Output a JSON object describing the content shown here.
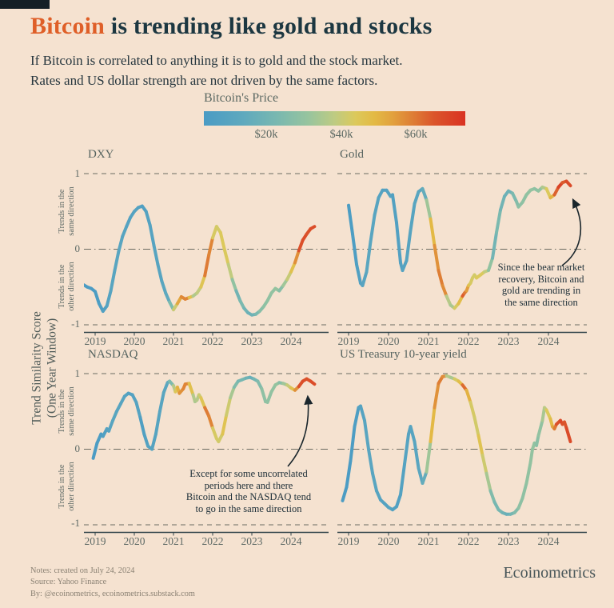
{
  "page": {
    "background": "#F5E2D0"
  },
  "header": {
    "title_highlight": "Bitcoin",
    "title_rest": " is trending like gold and stocks",
    "subtitle_line1": "If Bitcoin is correlated to anything it is to gold and the stock market.",
    "subtitle_line2": "Rates and US dollar strength are not driven by the same factors.",
    "accent_color": "#DF5F28",
    "title_color": "#1C3741"
  },
  "colorbar": {
    "label": "Bitcoin's Price",
    "ticks": [
      "$20k",
      "$40k",
      "$60k"
    ],
    "tick_positions_pct": [
      24,
      52.6,
      81
    ],
    "price_at_left_usd_k": 3,
    "price_at_right_usd_k": 72,
    "stops": [
      [
        0,
        "#4A9BC4"
      ],
      [
        0.15,
        "#5FA9BE"
      ],
      [
        0.28,
        "#79B8B0"
      ],
      [
        0.4,
        "#97C49E"
      ],
      [
        0.5,
        "#BECB82"
      ],
      [
        0.58,
        "#DCC95B"
      ],
      [
        0.65,
        "#E3BA45"
      ],
      [
        0.72,
        "#E2A23E"
      ],
      [
        0.8,
        "#DE7D35"
      ],
      [
        0.88,
        "#DB552B"
      ],
      [
        1,
        "#D93222"
      ]
    ]
  },
  "axis": {
    "years": [
      "2019",
      "2020",
      "2021",
      "2022",
      "2023",
      "2024"
    ],
    "y_tick_top": "1",
    "y_tick_mid": "0",
    "y_tick_bottom": "-1",
    "same_l1": "Trends in the",
    "same_l2": "same direction",
    "other_l1": "Trends in the",
    "other_l2": "other direction",
    "shared_ylabel_line1": "Trend Similarity Score",
    "shared_ylabel_line2": "(One Year Window)"
  },
  "annotations": {
    "gold": {
      "lines": [
        "Since the bear market",
        "recovery, Bitcoin and",
        "gold are trending in",
        "the same direction"
      ]
    },
    "nasdaq": {
      "lines": [
        "Except for some uncorrelated",
        "periods here and there",
        "Bitcoin and the NASDAQ tend",
        "to go in the same direction"
      ]
    }
  },
  "footer": {
    "note1": "Notes: created on July 24, 2024",
    "note2": "Source: Yahoo Finance",
    "note3": "By: @ecoinometrics, ecoinometrics.substack.com",
    "brand": "Ecoinometrics"
  },
  "chart_data": {
    "type": "line",
    "ylabel": "Trend Similarity Score (One Year Window)",
    "color_encoding": "line color = Bitcoin price (USD thousands) via colorbar",
    "ylim": [
      -1,
      1
    ],
    "xlim": [
      2018.7,
      2024.8
    ],
    "y_gridlines": [
      1,
      0,
      -1
    ],
    "grid": "dashed",
    "panels": [
      {
        "title": "DXY",
        "x": [
          2018.7,
          2018.8,
          2018.9,
          2019.0,
          2019.1,
          2019.2,
          2019.3,
          2019.4,
          2019.5,
          2019.6,
          2019.7,
          2019.8,
          2019.9,
          2020.0,
          2020.1,
          2020.2,
          2020.3,
          2020.4,
          2020.5,
          2020.6,
          2020.7,
          2020.8,
          2020.9,
          2021.0,
          2021.1,
          2021.2,
          2021.3,
          2021.4,
          2021.5,
          2021.6,
          2021.7,
          2021.8,
          2021.9,
          2022.0,
          2022.1,
          2022.2,
          2022.3,
          2022.4,
          2022.5,
          2022.6,
          2022.7,
          2022.8,
          2022.9,
          2023.0,
          2023.1,
          2023.2,
          2023.3,
          2023.4,
          2023.5,
          2023.6,
          2023.7,
          2023.8,
          2023.9,
          2024.0,
          2024.1,
          2024.2,
          2024.3,
          2024.4,
          2024.5,
          2024.6
        ],
        "y": [
          -0.47,
          -0.5,
          -0.52,
          -0.56,
          -0.72,
          -0.82,
          -0.75,
          -0.55,
          -0.28,
          -0.03,
          0.17,
          0.3,
          0.42,
          0.5,
          0.55,
          0.57,
          0.5,
          0.32,
          0.05,
          -0.2,
          -0.42,
          -0.58,
          -0.7,
          -0.8,
          -0.72,
          -0.63,
          -0.66,
          -0.64,
          -0.62,
          -0.58,
          -0.5,
          -0.35,
          -0.08,
          0.15,
          0.3,
          0.22,
          0.0,
          -0.2,
          -0.4,
          -0.55,
          -0.68,
          -0.78,
          -0.84,
          -0.87,
          -0.86,
          -0.82,
          -0.76,
          -0.68,
          -0.58,
          -0.52,
          -0.55,
          -0.48,
          -0.4,
          -0.3,
          -0.18,
          -0.02,
          0.12,
          0.2,
          0.27,
          0.3
        ]
      },
      {
        "title": "Gold",
        "annotation": "Since the bear market recovery, Bitcoin and gold are trending in the same direction",
        "x": [
          2019.0,
          2019.1,
          2019.2,
          2019.3,
          2019.35,
          2019.45,
          2019.55,
          2019.65,
          2019.75,
          2019.85,
          2019.95,
          2020.05,
          2020.1,
          2020.2,
          2020.3,
          2020.35,
          2020.45,
          2020.55,
          2020.65,
          2020.75,
          2020.85,
          2020.95,
          2021.05,
          2021.15,
          2021.25,
          2021.35,
          2021.45,
          2021.55,
          2021.65,
          2021.75,
          2021.85,
          2021.9,
          2021.95,
          2022.0,
          2022.05,
          2022.1,
          2022.15,
          2022.2,
          2022.3,
          2022.4,
          2022.5,
          2022.6,
          2022.7,
          2022.8,
          2022.9,
          2023.0,
          2023.1,
          2023.2,
          2023.25,
          2023.35,
          2023.45,
          2023.55,
          2023.65,
          2023.75,
          2023.85,
          2023.95,
          2024.05,
          2024.15,
          2024.25,
          2024.35,
          2024.45,
          2024.55
        ],
        "y": [
          0.58,
          0.2,
          -0.2,
          -0.45,
          -0.48,
          -0.3,
          0.1,
          0.45,
          0.68,
          0.78,
          0.78,
          0.7,
          0.72,
          0.35,
          -0.18,
          -0.28,
          -0.15,
          0.25,
          0.6,
          0.76,
          0.8,
          0.65,
          0.4,
          0.05,
          -0.28,
          -0.48,
          -0.62,
          -0.74,
          -0.78,
          -0.72,
          -0.62,
          -0.58,
          -0.55,
          -0.48,
          -0.45,
          -0.38,
          -0.34,
          -0.38,
          -0.34,
          -0.3,
          -0.28,
          -0.12,
          0.22,
          0.52,
          0.7,
          0.77,
          0.74,
          0.63,
          0.56,
          0.62,
          0.72,
          0.78,
          0.8,
          0.77,
          0.82,
          0.8,
          0.68,
          0.72,
          0.82,
          0.88,
          0.9,
          0.84
        ]
      },
      {
        "title": "NASDAQ",
        "annotation": "Except for some uncorrelated periods here and there Bitcoin and the NASDAQ tend to go in the same direction",
        "x": [
          2018.95,
          2019.05,
          2019.15,
          2019.2,
          2019.3,
          2019.35,
          2019.45,
          2019.55,
          2019.65,
          2019.75,
          2019.85,
          2019.95,
          2020.05,
          2020.15,
          2020.25,
          2020.35,
          2020.45,
          2020.55,
          2020.65,
          2020.75,
          2020.85,
          2020.9,
          2021.0,
          2021.05,
          2021.1,
          2021.15,
          2021.25,
          2021.3,
          2021.4,
          2021.5,
          2021.55,
          2021.6,
          2021.65,
          2021.7,
          2021.8,
          2021.9,
          2022.0,
          2022.1,
          2022.15,
          2022.25,
          2022.35,
          2022.45,
          2022.55,
          2022.65,
          2022.75,
          2022.85,
          2022.95,
          2023.05,
          2023.15,
          2023.25,
          2023.35,
          2023.4,
          2023.5,
          2023.6,
          2023.7,
          2023.8,
          2023.9,
          2024.0,
          2024.1,
          2024.2,
          2024.3,
          2024.4,
          2024.5,
          2024.6
        ],
        "y": [
          -0.12,
          0.08,
          0.2,
          0.17,
          0.27,
          0.24,
          0.38,
          0.5,
          0.6,
          0.7,
          0.74,
          0.72,
          0.62,
          0.42,
          0.2,
          0.04,
          0.0,
          0.2,
          0.5,
          0.75,
          0.88,
          0.9,
          0.84,
          0.76,
          0.82,
          0.74,
          0.8,
          0.86,
          0.87,
          0.72,
          0.63,
          0.65,
          0.72,
          0.68,
          0.55,
          0.44,
          0.28,
          0.14,
          0.1,
          0.2,
          0.45,
          0.68,
          0.82,
          0.9,
          0.92,
          0.94,
          0.95,
          0.93,
          0.9,
          0.8,
          0.63,
          0.62,
          0.76,
          0.85,
          0.88,
          0.87,
          0.85,
          0.81,
          0.78,
          0.83,
          0.9,
          0.93,
          0.9,
          0.86
        ]
      },
      {
        "title": "US Treasury 10-year yield",
        "x": [
          2018.85,
          2018.95,
          2019.05,
          2019.15,
          2019.25,
          2019.3,
          2019.4,
          2019.5,
          2019.6,
          2019.7,
          2019.8,
          2019.9,
          2020.0,
          2020.1,
          2020.2,
          2020.3,
          2020.4,
          2020.5,
          2020.55,
          2020.65,
          2020.75,
          2020.85,
          2020.95,
          2021.05,
          2021.15,
          2021.25,
          2021.35,
          2021.45,
          2021.55,
          2021.65,
          2021.75,
          2021.85,
          2021.95,
          2022.05,
          2022.15,
          2022.25,
          2022.35,
          2022.45,
          2022.55,
          2022.65,
          2022.75,
          2022.85,
          2022.95,
          2023.05,
          2023.15,
          2023.25,
          2023.35,
          2023.45,
          2023.55,
          2023.6,
          2023.65,
          2023.7,
          2023.75,
          2023.85,
          2023.9,
          2023.95,
          2024.05,
          2024.1,
          2024.15,
          2024.2,
          2024.3,
          2024.35,
          2024.4,
          2024.45,
          2024.55
        ],
        "y": [
          -0.68,
          -0.5,
          -0.15,
          0.3,
          0.55,
          0.57,
          0.38,
          0.0,
          -0.32,
          -0.55,
          -0.67,
          -0.72,
          -0.77,
          -0.8,
          -0.76,
          -0.6,
          -0.2,
          0.2,
          0.3,
          0.1,
          -0.25,
          -0.45,
          -0.3,
          0.1,
          0.55,
          0.87,
          0.96,
          0.97,
          0.95,
          0.93,
          0.9,
          0.85,
          0.78,
          0.62,
          0.42,
          0.18,
          -0.08,
          -0.32,
          -0.55,
          -0.7,
          -0.8,
          -0.84,
          -0.86,
          -0.86,
          -0.84,
          -0.78,
          -0.65,
          -0.45,
          -0.18,
          0.0,
          0.08,
          0.05,
          0.18,
          0.38,
          0.55,
          0.52,
          0.4,
          0.3,
          0.27,
          0.33,
          0.38,
          0.33,
          0.36,
          0.28,
          0.1
        ]
      }
    ],
    "bitcoin_price_series": {
      "x": [
        2018.7,
        2019.0,
        2019.2,
        2019.35,
        2019.5,
        2019.7,
        2019.9,
        2020.1,
        2020.2,
        2020.4,
        2020.6,
        2020.8,
        2020.9,
        2021.0,
        2021.1,
        2021.2,
        2021.3,
        2021.4,
        2021.5,
        2021.6,
        2021.7,
        2021.8,
        2021.87,
        2021.95,
        2022.05,
        2022.2,
        2022.3,
        2022.45,
        2022.55,
        2022.65,
        2022.75,
        2022.85,
        2023.0,
        2023.15,
        2023.3,
        2023.5,
        2023.65,
        2023.75,
        2023.9,
        2024.0,
        2024.1,
        2024.2,
        2024.3,
        2024.4,
        2024.5,
        2024.7
      ],
      "price_usd_k": [
        4.0,
        3.8,
        5.2,
        9.0,
        11.0,
        10.0,
        7.8,
        9.0,
        6.0,
        8.8,
        9.5,
        11.5,
        15.0,
        32.0,
        48.0,
        55.0,
        58.0,
        56.0,
        36.0,
        34.0,
        42.0,
        47.0,
        63.0,
        57.0,
        42.0,
        41.0,
        45.0,
        38.0,
        29.0,
        20.0,
        23.0,
        20.0,
        16.8,
        23.0,
        28.0,
        29.0,
        30.0,
        26.5,
        35.0,
        43.0,
        49.0,
        62.0,
        68.0,
        63.0,
        66.0,
        64.0
      ]
    }
  }
}
